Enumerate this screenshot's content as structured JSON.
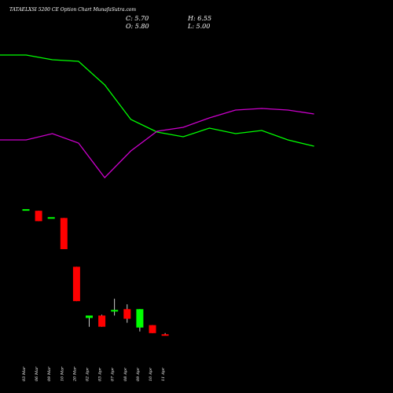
{
  "header": {
    "title": "TATAELXSI 5200  CE Option  Chart MunafaSutra.com",
    "close": "C: 5.70",
    "open": "O: 5.80",
    "high": "H: 6.55",
    "low": "L: 5.00"
  },
  "colors": {
    "background": "#000000",
    "up_candle": "#00ff00",
    "down_candle": "#ff0000",
    "green_line": "#00ff00",
    "magenta_line": "#cc00cc",
    "text": "#ffffff"
  },
  "chart_data": [
    {
      "type": "candlestick",
      "title": "TATAELXSI 5200  CE Option  Chart MunafaSutra.com",
      "categories": [
        "03 Mar",
        "06 Mar",
        "09 Mar",
        "10 Mar",
        "20 Mar",
        "02 Apr",
        "03 Apr",
        "07 Apr",
        "08 Apr",
        "09 Apr",
        "10 Apr",
        "11 Apr"
      ],
      "candles": [
        {
          "date": "03 Mar",
          "open": 84.0,
          "high": 84.0,
          "low": 84.0,
          "close": 84.0,
          "color": "up"
        },
        {
          "date": "06 Mar",
          "open": 83.0,
          "high": 83.0,
          "low": 76.5,
          "close": 76.5,
          "color": "down"
        },
        {
          "date": "09 Mar",
          "open": 79.0,
          "high": 79.0,
          "low": 79.0,
          "close": 79.0,
          "color": "up"
        },
        {
          "date": "10 Mar",
          "open": 78.5,
          "high": 78.5,
          "low": 59.0,
          "close": 59.0,
          "color": "down"
        },
        {
          "date": "20 Mar",
          "open": 48.0,
          "high": 48.0,
          "low": 26.5,
          "close": 26.5,
          "color": "down"
        },
        {
          "date": "02 Apr",
          "open": 16.0,
          "high": 17.5,
          "low": 10.5,
          "close": 17.5,
          "color": "up"
        },
        {
          "date": "03 Apr",
          "open": 17.5,
          "high": 18.0,
          "low": 10.5,
          "close": 10.5,
          "color": "down"
        },
        {
          "date": "07 Apr",
          "open": 20.0,
          "high": 28.0,
          "low": 17.5,
          "close": 21.0,
          "color": "up"
        },
        {
          "date": "08 Apr",
          "open": 21.5,
          "high": 24.5,
          "low": 13.0,
          "close": 15.5,
          "color": "down"
        },
        {
          "date": "09 Apr",
          "open": 10.0,
          "high": 21.5,
          "low": 7.5,
          "close": 21.5,
          "color": "up"
        },
        {
          "date": "10 Apr",
          "open": 11.5,
          "high": 11.5,
          "low": 6.5,
          "close": 6.5,
          "color": "down"
        },
        {
          "date": "11 Apr",
          "open": 5.8,
          "high": 6.55,
          "low": 5.0,
          "close": 5.7,
          "color": "down"
        }
      ],
      "overlay_lines": [
        {
          "color": "#00ff00",
          "values": [
            370,
            370,
            364,
            362,
            332,
            288,
            272,
            266,
            277,
            270,
            274,
            262,
            254
          ]
        },
        {
          "color": "#cc00cc",
          "values": [
            262,
            262,
            270,
            258,
            214,
            248,
            273,
            278,
            290,
            300,
            302,
            300,
            295
          ]
        }
      ]
    }
  ]
}
